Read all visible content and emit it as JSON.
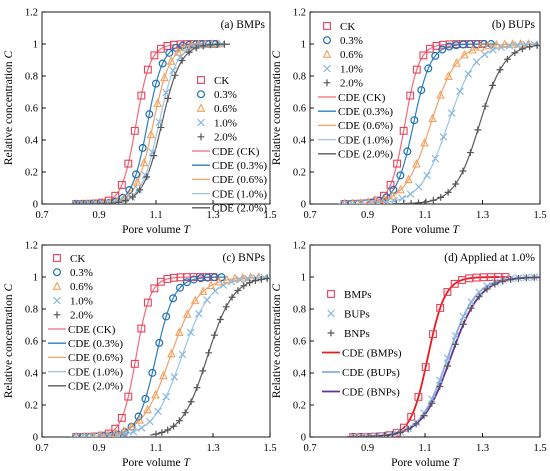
{
  "figure": {
    "ylabel": "Relative concentration",
    "ylabel_var": "C",
    "xlabel": "Pore volume",
    "xlabel_var": "T"
  },
  "series_styles": {
    "CK": {
      "marker": "square",
      "color": "#e8425a",
      "curve": "#f06a7c"
    },
    "0.3%": {
      "marker": "circle",
      "color": "#1f6fb4",
      "curve": "#2a7fc0"
    },
    "0.6%": {
      "marker": "triangle",
      "color": "#f4a15a",
      "curve": "#f3a06a"
    },
    "1.0%": {
      "marker": "x",
      "color": "#8ab8de",
      "curve": "#9cc6e6"
    },
    "2.0%": {
      "marker": "plus",
      "color": "#555555",
      "curve": "#5a5a5a"
    },
    "BMPs": {
      "marker": "square",
      "color": "#e8425a",
      "curve": "#e8191f"
    },
    "BUPs": {
      "marker": "x",
      "color": "#8ab8de",
      "curve": "#8aaee0"
    },
    "BNPs": {
      "marker": "plus",
      "color": "#555555",
      "curve": "#6a2c91"
    }
  },
  "chart_data": [
    {
      "type": "scatter",
      "title": "(a) BMPs",
      "xlim": [
        0.7,
        1.5
      ],
      "ylim": [
        0,
        1.2
      ],
      "xticks": [
        "0.7",
        "0.9",
        "1.1",
        "1.3",
        "1.5"
      ],
      "yticks": [
        "0",
        "0.2",
        "0.4",
        "0.6",
        "0.8",
        "1",
        "1.2"
      ],
      "legend_position": "right",
      "legend": [
        "CK",
        "0.3%",
        "0.6%",
        "1.0%",
        "2.0%",
        "CDE (CK)",
        "CDE (0.3%)",
        "CDE (0.6%)",
        "CDE (1.0%)",
        "CDE (2.0%)"
      ],
      "series": [
        {
          "key": "CK",
          "x0": 1.03,
          "w": 0.025,
          "xmin": 0.82,
          "xmax": 1.3,
          "n": 22
        },
        {
          "key": "0.3%",
          "x0": 1.07,
          "w": 0.027,
          "xmin": 0.82,
          "xmax": 1.31,
          "n": 22
        },
        {
          "key": "0.6%",
          "x0": 1.09,
          "w": 0.03,
          "xmin": 0.82,
          "xmax": 1.32,
          "n": 22
        },
        {
          "key": "1.0%",
          "x0": 1.11,
          "w": 0.031,
          "xmin": 0.82,
          "xmax": 1.33,
          "n": 22
        },
        {
          "key": "2.0%",
          "x0": 1.12,
          "w": 0.033,
          "xmin": 0.82,
          "xmax": 1.34,
          "n": 22
        }
      ]
    },
    {
      "type": "scatter",
      "title": "(b) BUPs",
      "xlim": [
        0.7,
        1.5
      ],
      "ylim": [
        0,
        1.2
      ],
      "xticks": [
        "0.7",
        "0.9",
        "1.1",
        "1.3",
        "1.5"
      ],
      "yticks": [
        "0",
        "0.2",
        "0.4",
        "0.6",
        "0.8",
        "1",
        "1.2"
      ],
      "legend_position": "top-left",
      "legend": [
        "CK",
        "0.3%",
        "0.6%",
        "1.0%",
        "2.0%",
        "CDE (CK)",
        "CDE (0.3%)",
        "CDE (0.6%)",
        "CDE (1.0%)",
        "CDE (2.0%)"
      ],
      "series": [
        {
          "key": "CK",
          "x0": 1.03,
          "w": 0.025,
          "xmin": 0.82,
          "xmax": 1.3,
          "n": 22
        },
        {
          "key": "0.3%",
          "x0": 1.06,
          "w": 0.03,
          "xmin": 0.82,
          "xmax": 1.33,
          "n": 22
        },
        {
          "key": "0.6%",
          "x0": 1.12,
          "w": 0.045,
          "xmin": 0.82,
          "xmax": 1.46,
          "n": 24
        },
        {
          "key": "1.0%",
          "x0": 1.18,
          "w": 0.048,
          "xmin": 0.82,
          "xmax": 1.48,
          "n": 24
        },
        {
          "key": "2.0%",
          "x0": 1.29,
          "w": 0.043,
          "xmin": 1.0,
          "xmax": 1.49,
          "n": 20
        }
      ]
    },
    {
      "type": "scatter",
      "title": "(c) BNPs",
      "xlim": [
        0.7,
        1.5
      ],
      "ylim": [
        0,
        1.2
      ],
      "xticks": [
        "0.7",
        "0.9",
        "1.1",
        "1.3",
        "1.5"
      ],
      "yticks": [
        "0",
        "0.2",
        "0.4",
        "0.6",
        "0.8",
        "1",
        "1.2"
      ],
      "legend_position": "top-left",
      "legend": [
        "CK",
        "0.3%",
        "0.6%",
        "1.0%",
        "2.0%",
        "CDE (CK)",
        "CDE (0.3%)",
        "CDE (0.6%)",
        "CDE (1.0%)",
        "CDE (2.0%)"
      ],
      "series": [
        {
          "key": "CK",
          "x0": 1.03,
          "w": 0.025,
          "xmin": 0.82,
          "xmax": 1.3,
          "n": 22
        },
        {
          "key": "0.3%",
          "x0": 1.1,
          "w": 0.032,
          "xmin": 0.82,
          "xmax": 1.33,
          "n": 22
        },
        {
          "key": "0.6%",
          "x0": 1.15,
          "w": 0.05,
          "xmin": 0.82,
          "xmax": 1.46,
          "n": 24
        },
        {
          "key": "1.0%",
          "x0": 1.19,
          "w": 0.05,
          "xmin": 0.82,
          "xmax": 1.48,
          "n": 24
        },
        {
          "key": "2.0%",
          "x0": 1.28,
          "w": 0.045,
          "xmin": 1.1,
          "xmax": 1.49,
          "n": 20
        }
      ]
    },
    {
      "type": "scatter",
      "title": "(d) Applied at 1.0%",
      "xlim": [
        0.7,
        1.5
      ],
      "ylim": [
        0,
        1.2
      ],
      "xticks": [
        "0.7",
        "0.9",
        "1.1",
        "1.3",
        "1.5"
      ],
      "yticks": [
        "0",
        "0.2",
        "0.4",
        "0.6",
        "0.8",
        "1",
        "1.2"
      ],
      "legend_position": "top-left",
      "legend": [
        "BMPs",
        "BUPs",
        "BNPs",
        "CDE (BMPs)",
        "CDE (BUPs)",
        "CDE (BNPs)"
      ],
      "series": [
        {
          "key": "BMPs",
          "x0": 1.11,
          "w": 0.03,
          "xmin": 0.85,
          "xmax": 1.38,
          "n": 22
        },
        {
          "key": "BUPs",
          "x0": 1.18,
          "w": 0.048,
          "xmin": 0.85,
          "xmax": 1.48,
          "n": 24
        },
        {
          "key": "BNPs",
          "x0": 1.19,
          "w": 0.05,
          "xmin": 0.85,
          "xmax": 1.48,
          "n": 24
        }
      ]
    }
  ]
}
